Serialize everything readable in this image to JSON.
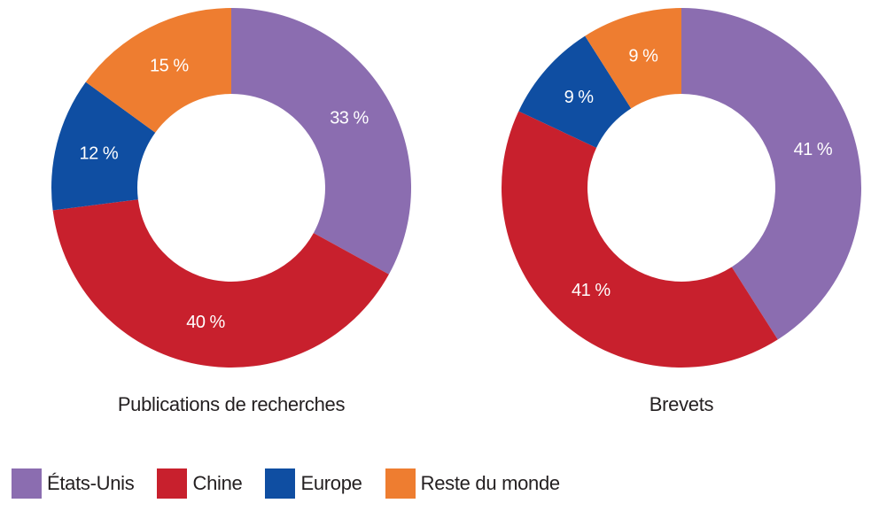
{
  "colors": {
    "etats_unis": "#8b6db0",
    "chine": "#c8202d",
    "europe": "#0f4ea2",
    "reste": "#ee7d30"
  },
  "chart_data": [
    {
      "type": "pie",
      "variant": "donut",
      "title": "Publications de recherches",
      "categories": [
        "États-Unis",
        "Chine",
        "Europe",
        "Reste du monde"
      ],
      "values": [
        33,
        40,
        12,
        15
      ],
      "labels": [
        "33 %",
        "40 %",
        "12 %",
        "15 %"
      ],
      "start": "12 o'clock",
      "direction": "clockwise"
    },
    {
      "type": "pie",
      "variant": "donut",
      "title": "Brevets",
      "categories": [
        "États-Unis",
        "Chine",
        "Europe",
        "Reste du monde"
      ],
      "values": [
        41,
        41,
        9,
        9
      ],
      "labels": [
        "41 %",
        "41 %",
        "9 %",
        "9 %"
      ],
      "start": "12 o'clock",
      "direction": "clockwise"
    }
  ],
  "legend": {
    "placement": "bottom-left",
    "items": [
      {
        "label": "États-Unis",
        "color_key": "etats_unis"
      },
      {
        "label": "Chine",
        "color_key": "chine"
      },
      {
        "label": "Europe",
        "color_key": "europe"
      },
      {
        "label": "Reste du monde",
        "color_key": "reste"
      }
    ]
  }
}
